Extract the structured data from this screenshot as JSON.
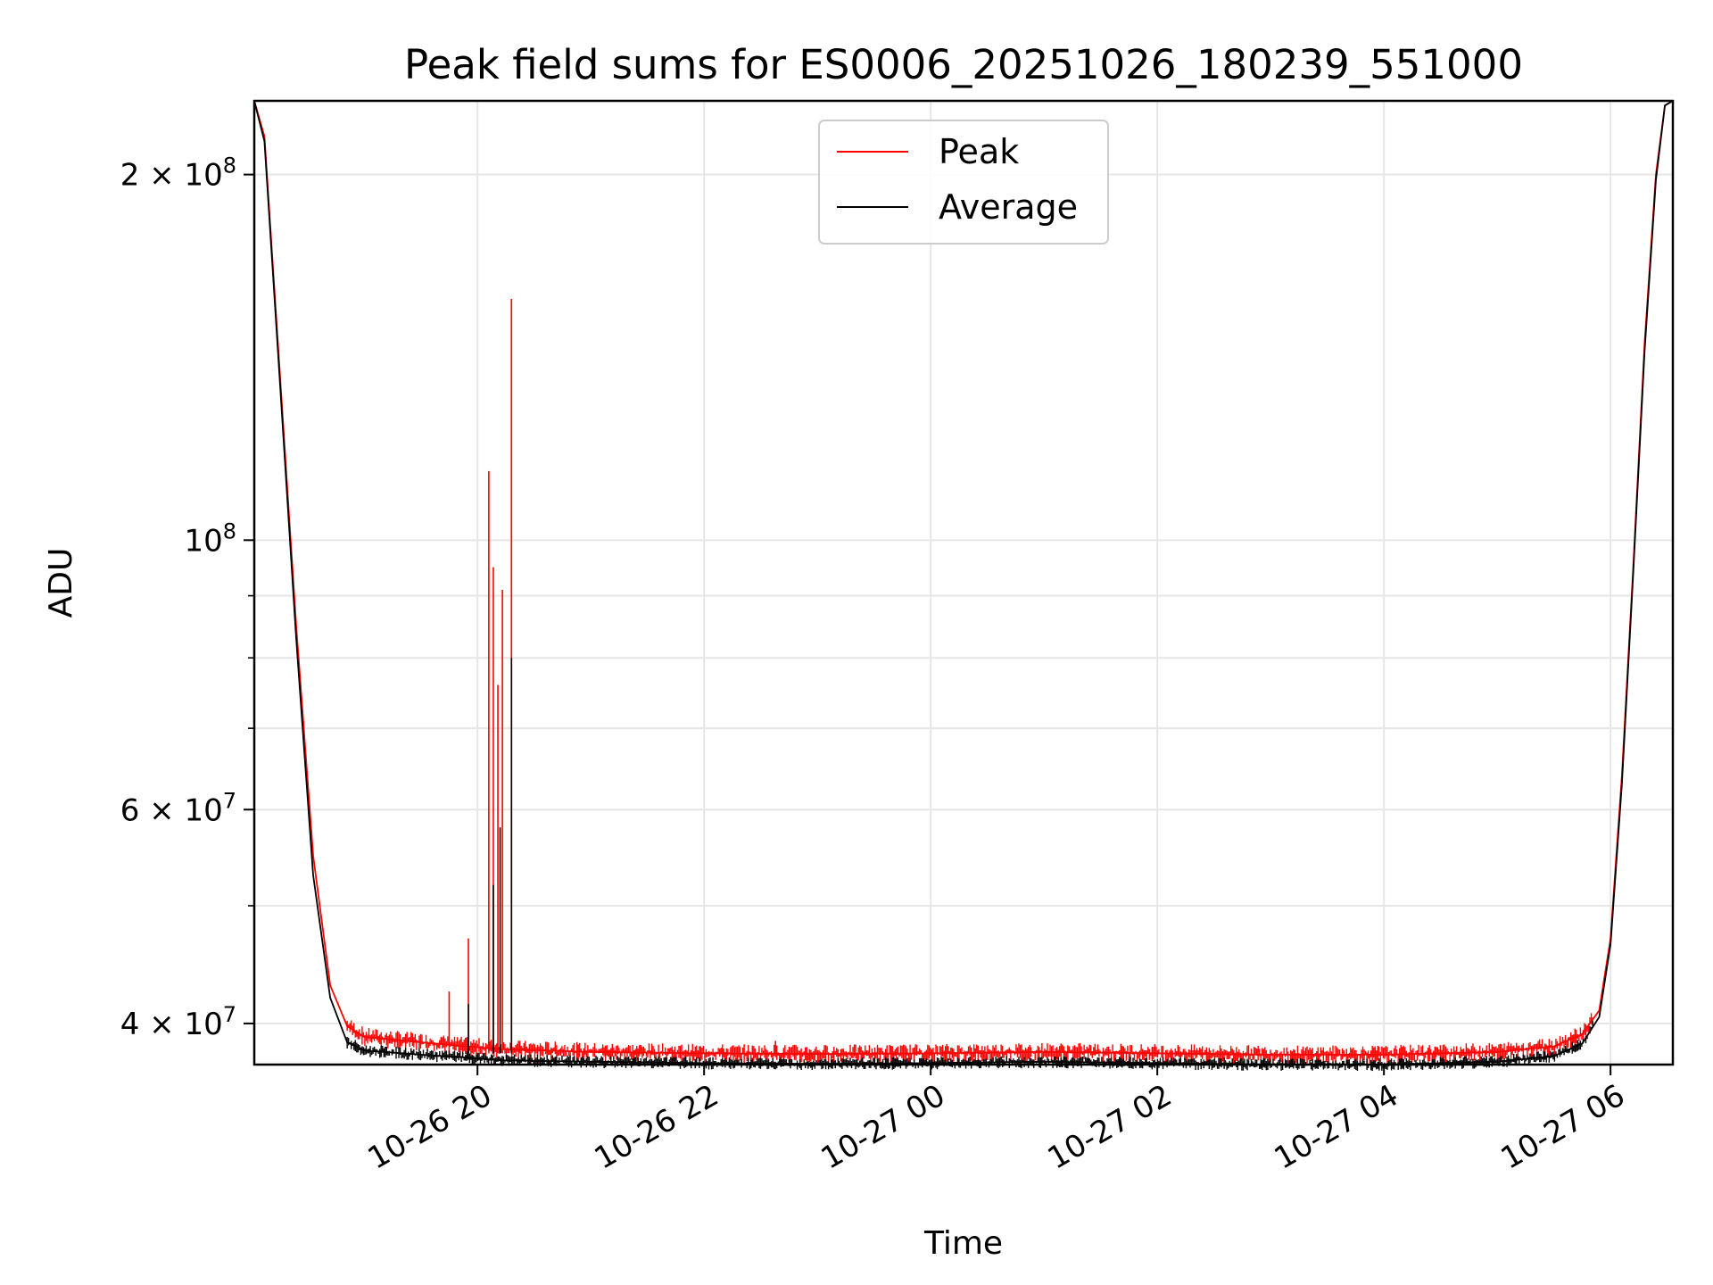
{
  "chart_data": {
    "type": "line",
    "title": "Peak field sums for ES0006_20251026_180239_551000",
    "xlabel": "Time",
    "ylabel": "ADU",
    "yscale": "log",
    "ylim": [
      37000000,
      230000000
    ],
    "xlim_hours": [
      18.03,
      30.55
    ],
    "x_ticks": [
      {
        "hour": 20,
        "label": "10-26 20"
      },
      {
        "hour": 22,
        "label": "10-26 22"
      },
      {
        "hour": 24,
        "label": "10-27 00"
      },
      {
        "hour": 26,
        "label": "10-27 02"
      },
      {
        "hour": 28,
        "label": "10-27 04"
      },
      {
        "hour": 30,
        "label": "10-27 06"
      }
    ],
    "y_ticks": [
      {
        "value": 40000000,
        "base": "4",
        "exp": "7"
      },
      {
        "value": 60000000,
        "base": "6",
        "exp": "7"
      },
      {
        "value": 100000000,
        "base": "",
        "exp": "8"
      },
      {
        "value": 200000000,
        "base": "2",
        "exp": "8"
      }
    ],
    "y_minor_ticks": [
      50000000,
      70000000,
      80000000,
      90000000
    ],
    "legend": {
      "location": "upper center",
      "entries": [
        "Peak",
        "Average"
      ]
    },
    "series": [
      {
        "name": "Peak",
        "color": "#ff0000",
        "x_hours": [
          18.03,
          18.12,
          18.25,
          18.4,
          18.55,
          18.7,
          18.85,
          19.0,
          19.5,
          19.9,
          20.2,
          21.0,
          22.0,
          23.0,
          24.0,
          25.0,
          26.0,
          27.0,
          28.0,
          29.0,
          29.5,
          29.75,
          29.9,
          30.0,
          30.1,
          30.2,
          30.3,
          30.4,
          30.48,
          30.55
        ],
        "y_values": [
          230000000,
          215000000,
          140000000,
          85000000,
          55000000,
          43000000,
          39800000,
          39000000,
          38600000,
          38300000,
          38100000,
          37900000,
          37800000,
          37750000,
          37800000,
          37900000,
          37800000,
          37700000,
          37700000,
          37900000,
          38300000,
          39200000,
          41000000,
          47000000,
          64000000,
          95000000,
          145000000,
          200000000,
          228000000,
          230000000
        ],
        "spikes": [
          {
            "hour": 19.75,
            "value": 42500000
          },
          {
            "hour": 19.92,
            "value": 47000000
          },
          {
            "hour": 20.1,
            "value": 114000000
          },
          {
            "hour": 20.14,
            "value": 95000000
          },
          {
            "hour": 20.18,
            "value": 76000000
          },
          {
            "hour": 20.22,
            "value": 91000000
          },
          {
            "hour": 20.3,
            "value": 158000000
          },
          {
            "hour": 22.63,
            "value": 38700000
          }
        ]
      },
      {
        "name": "Average",
        "color": "#000000",
        "x_hours": [
          18.03,
          18.12,
          18.25,
          18.4,
          18.55,
          18.7,
          18.85,
          19.0,
          19.5,
          19.9,
          20.2,
          21.0,
          22.0,
          23.0,
          24.0,
          25.0,
          26.0,
          27.0,
          28.0,
          29.0,
          29.5,
          29.75,
          29.9,
          30.0,
          30.1,
          30.2,
          30.3,
          30.4,
          30.48,
          30.55
        ],
        "y_values": [
          230000000,
          213000000,
          138000000,
          83000000,
          53000000,
          42000000,
          38600000,
          38000000,
          37700000,
          37500000,
          37300000,
          37200000,
          37100000,
          37050000,
          37100000,
          37200000,
          37100000,
          37000000,
          37000000,
          37200000,
          37600000,
          38500000,
          40500000,
          46500000,
          63000000,
          94000000,
          143000000,
          198000000,
          228000000,
          230000000
        ],
        "spikes": [
          {
            "hour": 19.92,
            "value": 41500000
          },
          {
            "hour": 20.14,
            "value": 52000000
          },
          {
            "hour": 20.2,
            "value": 58000000
          },
          {
            "hour": 20.3,
            "value": 80000000
          }
        ]
      }
    ]
  }
}
